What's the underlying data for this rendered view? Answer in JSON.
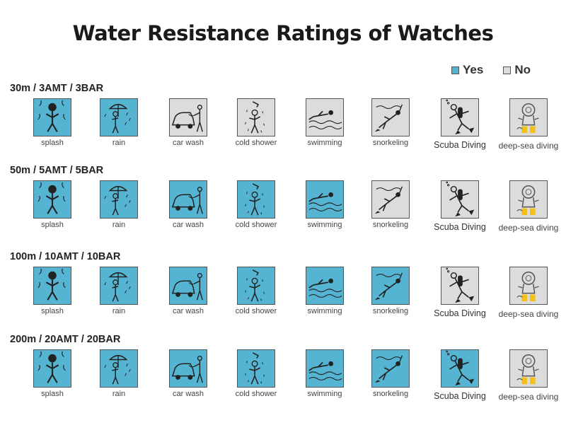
{
  "title": "Water Resistance Ratings of Watches",
  "legend": {
    "yes": {
      "label": "Yes",
      "color": "#56b4d3"
    },
    "no": {
      "label": "No",
      "color": "#dcdcdc"
    }
  },
  "activities": [
    {
      "label": "splash",
      "icon": "splash-icon"
    },
    {
      "label": "rain",
      "icon": "rain-icon"
    },
    {
      "label": "car wash",
      "icon": "car-wash-icon"
    },
    {
      "label": "cold shower",
      "icon": "cold-shower-icon"
    },
    {
      "label": "swimming",
      "icon": "swimming-icon"
    },
    {
      "label": "snorkeling",
      "icon": "snorkeling-icon"
    },
    {
      "label": "Scuba Diving",
      "icon": "scuba-diving-icon"
    },
    {
      "label": "deep-sea diving",
      "icon": "deep-sea-diving-icon"
    }
  ],
  "ratings": [
    {
      "label": "30m / 3AMT / 3BAR",
      "allowed": [
        true,
        true,
        false,
        false,
        false,
        false,
        false,
        false
      ]
    },
    {
      "label": "50m / 5AMT / 5BAR",
      "allowed": [
        true,
        true,
        true,
        true,
        true,
        false,
        false,
        false
      ]
    },
    {
      "label": "100m / 10AMT / 10BAR",
      "allowed": [
        true,
        true,
        true,
        true,
        true,
        true,
        false,
        false
      ]
    },
    {
      "label": "200m / 20AMT / 20BAR",
      "allowed": [
        true,
        true,
        true,
        true,
        true,
        true,
        true,
        false
      ]
    }
  ]
}
